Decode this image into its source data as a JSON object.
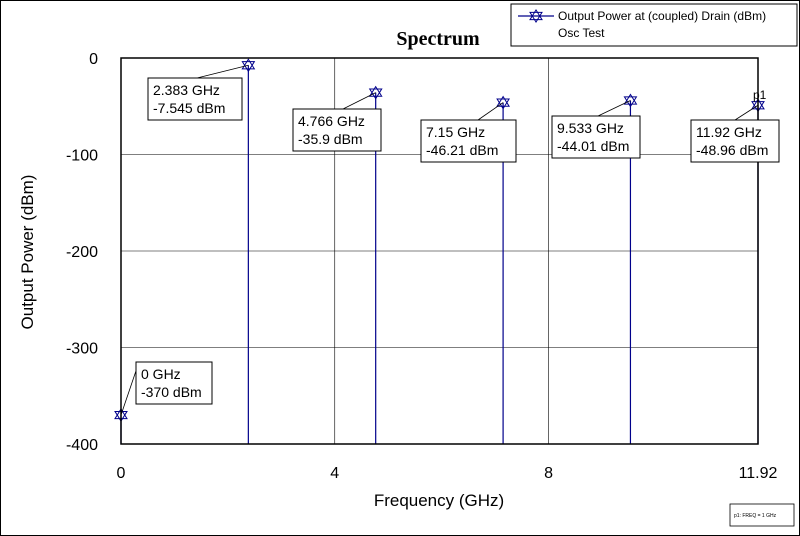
{
  "chart_data": {
    "type": "line",
    "title": "Spectrum",
    "xlabel": "Frequency (GHz)",
    "ylabel": "Output Power (dBm)",
    "xlim": [
      0,
      11.92
    ],
    "ylim": [
      -400,
      0
    ],
    "xticks": [
      "0",
      "4",
      "8",
      "11.92"
    ],
    "yticks": [
      "0",
      "-100",
      "-200",
      "-300",
      "-400"
    ],
    "grid": true,
    "legend_position": "top-right",
    "legend": {
      "series_label": "Output Power at (coupled) Drain (dBm)",
      "subtitle": "Osc Test"
    },
    "series": [
      {
        "name": "Output Power at (coupled) Drain (dBm)",
        "color": "#00008b",
        "style": "stem",
        "x": [
          0,
          2.383,
          4.766,
          7.15,
          9.533,
          11.92
        ],
        "y": [
          -370,
          -7.545,
          -35.9,
          -46.21,
          -44.01,
          -48.96
        ]
      }
    ],
    "annotations": [
      {
        "freq": "0 GHz",
        "power": "-370 dBm"
      },
      {
        "freq": "2.383 GHz",
        "power": "-7.545 dBm"
      },
      {
        "freq": "4.766 GHz",
        "power": "-35.9 dBm"
      },
      {
        "freq": "7.15 GHz",
        "power": "-46.21 dBm"
      },
      {
        "freq": "9.533 GHz",
        "power": "-44.01 dBm"
      },
      {
        "freq": "11.92 GHz",
        "power": "-48.96 dBm"
      }
    ],
    "marker_label": "p1",
    "marker_note": "p1: FREQ = 1 GHz"
  }
}
